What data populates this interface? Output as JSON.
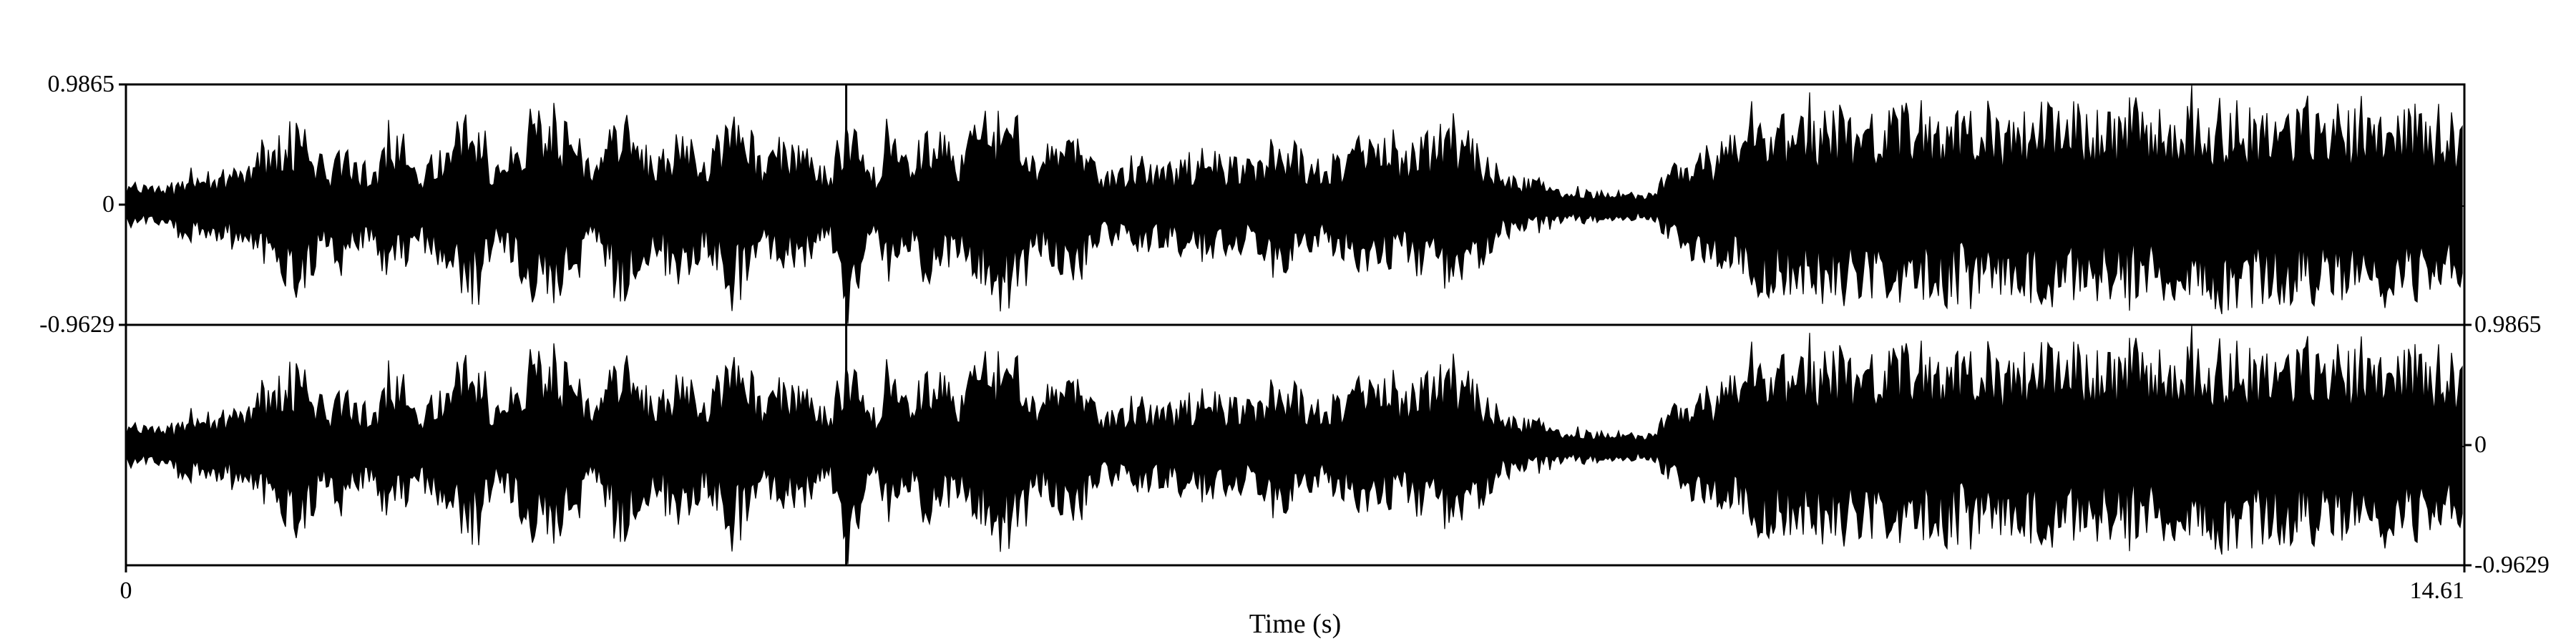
{
  "chart_data": {
    "type": "area",
    "xlabel": "Time (s)",
    "xlim": [
      0,
      14.61
    ],
    "x_ticks": [
      "0",
      "14.61"
    ],
    "cursor_time": 4.5,
    "channels": [
      {
        "name": "",
        "ylim": [
          -0.9629,
          0.9865
        ],
        "y_ticks": [
          "0.9865",
          "0",
          "-0.9629"
        ],
        "tick_side": "left"
      },
      {
        "name": "",
        "ylim": [
          -0.9629,
          0.9865
        ],
        "y_ticks": [
          "0.9865",
          "0",
          "-0.9629"
        ],
        "tick_side": "right"
      }
    ],
    "envelope": {
      "t": [
        0,
        0.3,
        0.32,
        0.7,
        0.72,
        1.1,
        1.25,
        1.35,
        1.55,
        1.65,
        1.85,
        2.0,
        2.2,
        2.3,
        2.5,
        2.8,
        2.9,
        3.1,
        3.3,
        3.5,
        3.6,
        3.8,
        4.0,
        4.2,
        4.4,
        4.5,
        4.7,
        4.75,
        4.9,
        5.0,
        5.2,
        5.4,
        5.6,
        5.7,
        5.9,
        6.1,
        6.3,
        6.5,
        6.7,
        7.0,
        7.2,
        7.5,
        7.7,
        8.0,
        8.3,
        8.6,
        8.9,
        9.2,
        9.5,
        9.8,
        10.0,
        10.1,
        10.4,
        10.7,
        11.0,
        11.3,
        11.6,
        11.9,
        12.2,
        12.5,
        12.8,
        13.1,
        13.4,
        13.7,
        14.0,
        14.3,
        14.61
      ],
      "amp": [
        0.2,
        0.2,
        0.3,
        0.32,
        0.35,
        0.8,
        0.35,
        0.6,
        0.3,
        0.8,
        0.35,
        0.6,
        0.9,
        0.3,
        0.85,
        0.75,
        0.35,
        0.85,
        0.4,
        0.8,
        0.4,
        0.85,
        0.45,
        0.6,
        0.3,
        1.0,
        0.25,
        0.75,
        0.4,
        0.7,
        0.5,
        0.85,
        0.9,
        0.4,
        0.85,
        0.3,
        0.45,
        0.35,
        0.5,
        0.4,
        0.65,
        0.35,
        0.6,
        0.55,
        0.8,
        0.3,
        0.18,
        0.15,
        0.12,
        0.5,
        0.55,
        0.75,
        0.8,
        0.85,
        0.8,
        0.9,
        0.75,
        0.85,
        0.9,
        0.8,
        0.85,
        0.9,
        0.85,
        0.85,
        0.9,
        0.85,
        0.75
      ]
    }
  }
}
